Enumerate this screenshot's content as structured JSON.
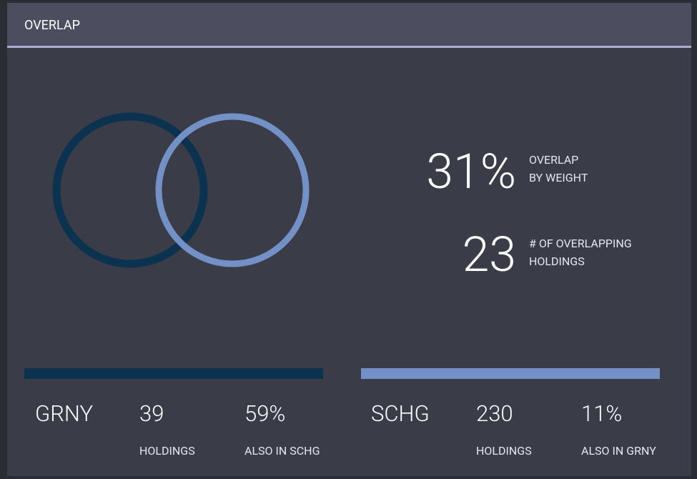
{
  "header": {
    "title": "OVERLAP"
  },
  "summary": [
    {
      "value": "31%",
      "label_lines": [
        "OVERLAP",
        "BY WEIGHT"
      ]
    },
    {
      "value": "23",
      "label_lines": [
        "# OF OVERLAPPING",
        "HOLDINGS"
      ]
    }
  ],
  "funds": [
    {
      "ticker": "GRNY",
      "color": "#0b3350",
      "holdings": "39",
      "holdings_label": "HOLDINGS",
      "also": "59%",
      "also_label": "ALSO IN SCHG"
    },
    {
      "ticker": "SCHG",
      "color": "#7391c6",
      "holdings": "230",
      "holdings_label": "HOLDINGS",
      "also": "11%",
      "also_label": "ALSO IN GRNY"
    }
  ]
}
